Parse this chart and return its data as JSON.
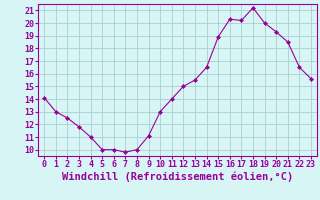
{
  "x": [
    0,
    1,
    2,
    3,
    4,
    5,
    6,
    7,
    8,
    9,
    10,
    11,
    12,
    13,
    14,
    15,
    16,
    17,
    18,
    19,
    20,
    21,
    22,
    23
  ],
  "y": [
    14.1,
    13.0,
    12.5,
    11.8,
    11.0,
    10.0,
    10.0,
    9.8,
    10.0,
    11.1,
    13.0,
    14.0,
    15.0,
    15.5,
    16.5,
    18.9,
    20.3,
    20.2,
    21.2,
    20.0,
    19.3,
    18.5,
    16.5,
    15.6
  ],
  "line_color": "#990099",
  "marker": "D",
  "marker_size": 2,
  "background_color": "#d8f5f5",
  "grid_color": "#aacfcf",
  "xlabel": "Windchill (Refroidissement éolien,°C)",
  "ylim": [
    9.5,
    21.5
  ],
  "xlim": [
    -0.5,
    23.5
  ],
  "yticks": [
    10,
    11,
    12,
    13,
    14,
    15,
    16,
    17,
    18,
    19,
    20,
    21
  ],
  "xticks": [
    0,
    1,
    2,
    3,
    4,
    5,
    6,
    7,
    8,
    9,
    10,
    11,
    12,
    13,
    14,
    15,
    16,
    17,
    18,
    19,
    20,
    21,
    22,
    23
  ],
  "tick_fontsize": 6,
  "xlabel_fontsize": 7.5,
  "label_color": "#990099"
}
